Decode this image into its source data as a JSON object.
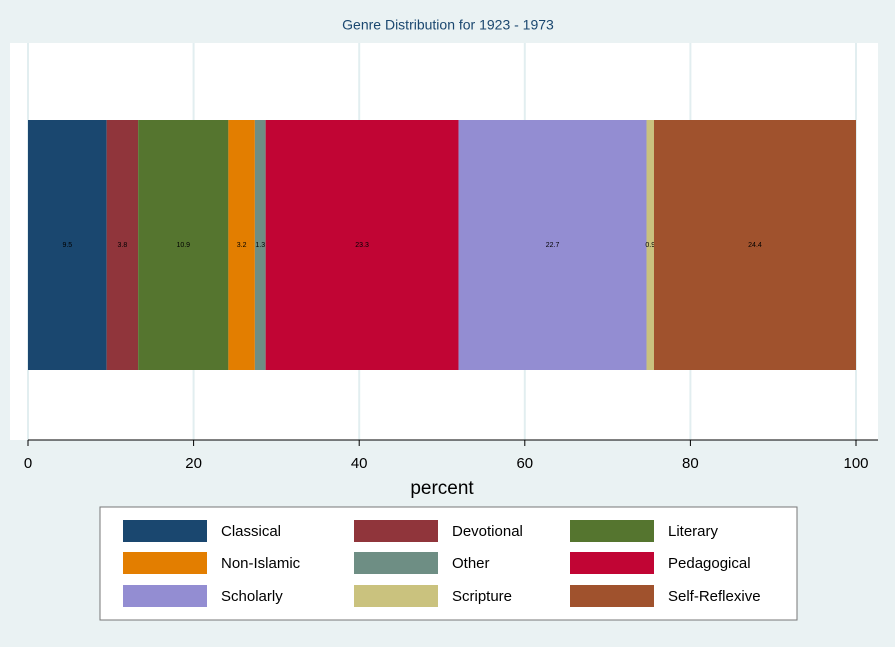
{
  "chart_data": {
    "type": "stacked-bar",
    "orientation": "horizontal",
    "title": "Genre Distribution for 1923 - 1973",
    "xlabel": "percent",
    "xlim": [
      0,
      100
    ],
    "xticks": [
      0,
      20,
      40,
      60,
      80,
      100
    ],
    "grid": true,
    "legend": "bottom",
    "series": [
      {
        "name": "Classical",
        "color": "#1a476f",
        "values": [
          9.5
        ]
      },
      {
        "name": "Devotional",
        "color": "#90353b",
        "values": [
          3.8
        ]
      },
      {
        "name": "Literary",
        "color": "#55752f",
        "values": [
          10.9
        ]
      },
      {
        "name": "Non-Islamic",
        "color": "#e37e00",
        "values": [
          3.2
        ]
      },
      {
        "name": "Other",
        "color": "#6e8e84",
        "values": [
          1.3
        ]
      },
      {
        "name": "Pedagogical",
        "color": "#c10534",
        "values": [
          23.3
        ]
      },
      {
        "name": "Scholarly",
        "color": "#938dd2",
        "values": [
          22.7
        ]
      },
      {
        "name": "Scripture",
        "color": "#cac27e",
        "values": [
          0.9
        ]
      },
      {
        "name": "Self-Reflexive",
        "color": "#a0522d",
        "values": [
          24.4
        ]
      }
    ]
  }
}
